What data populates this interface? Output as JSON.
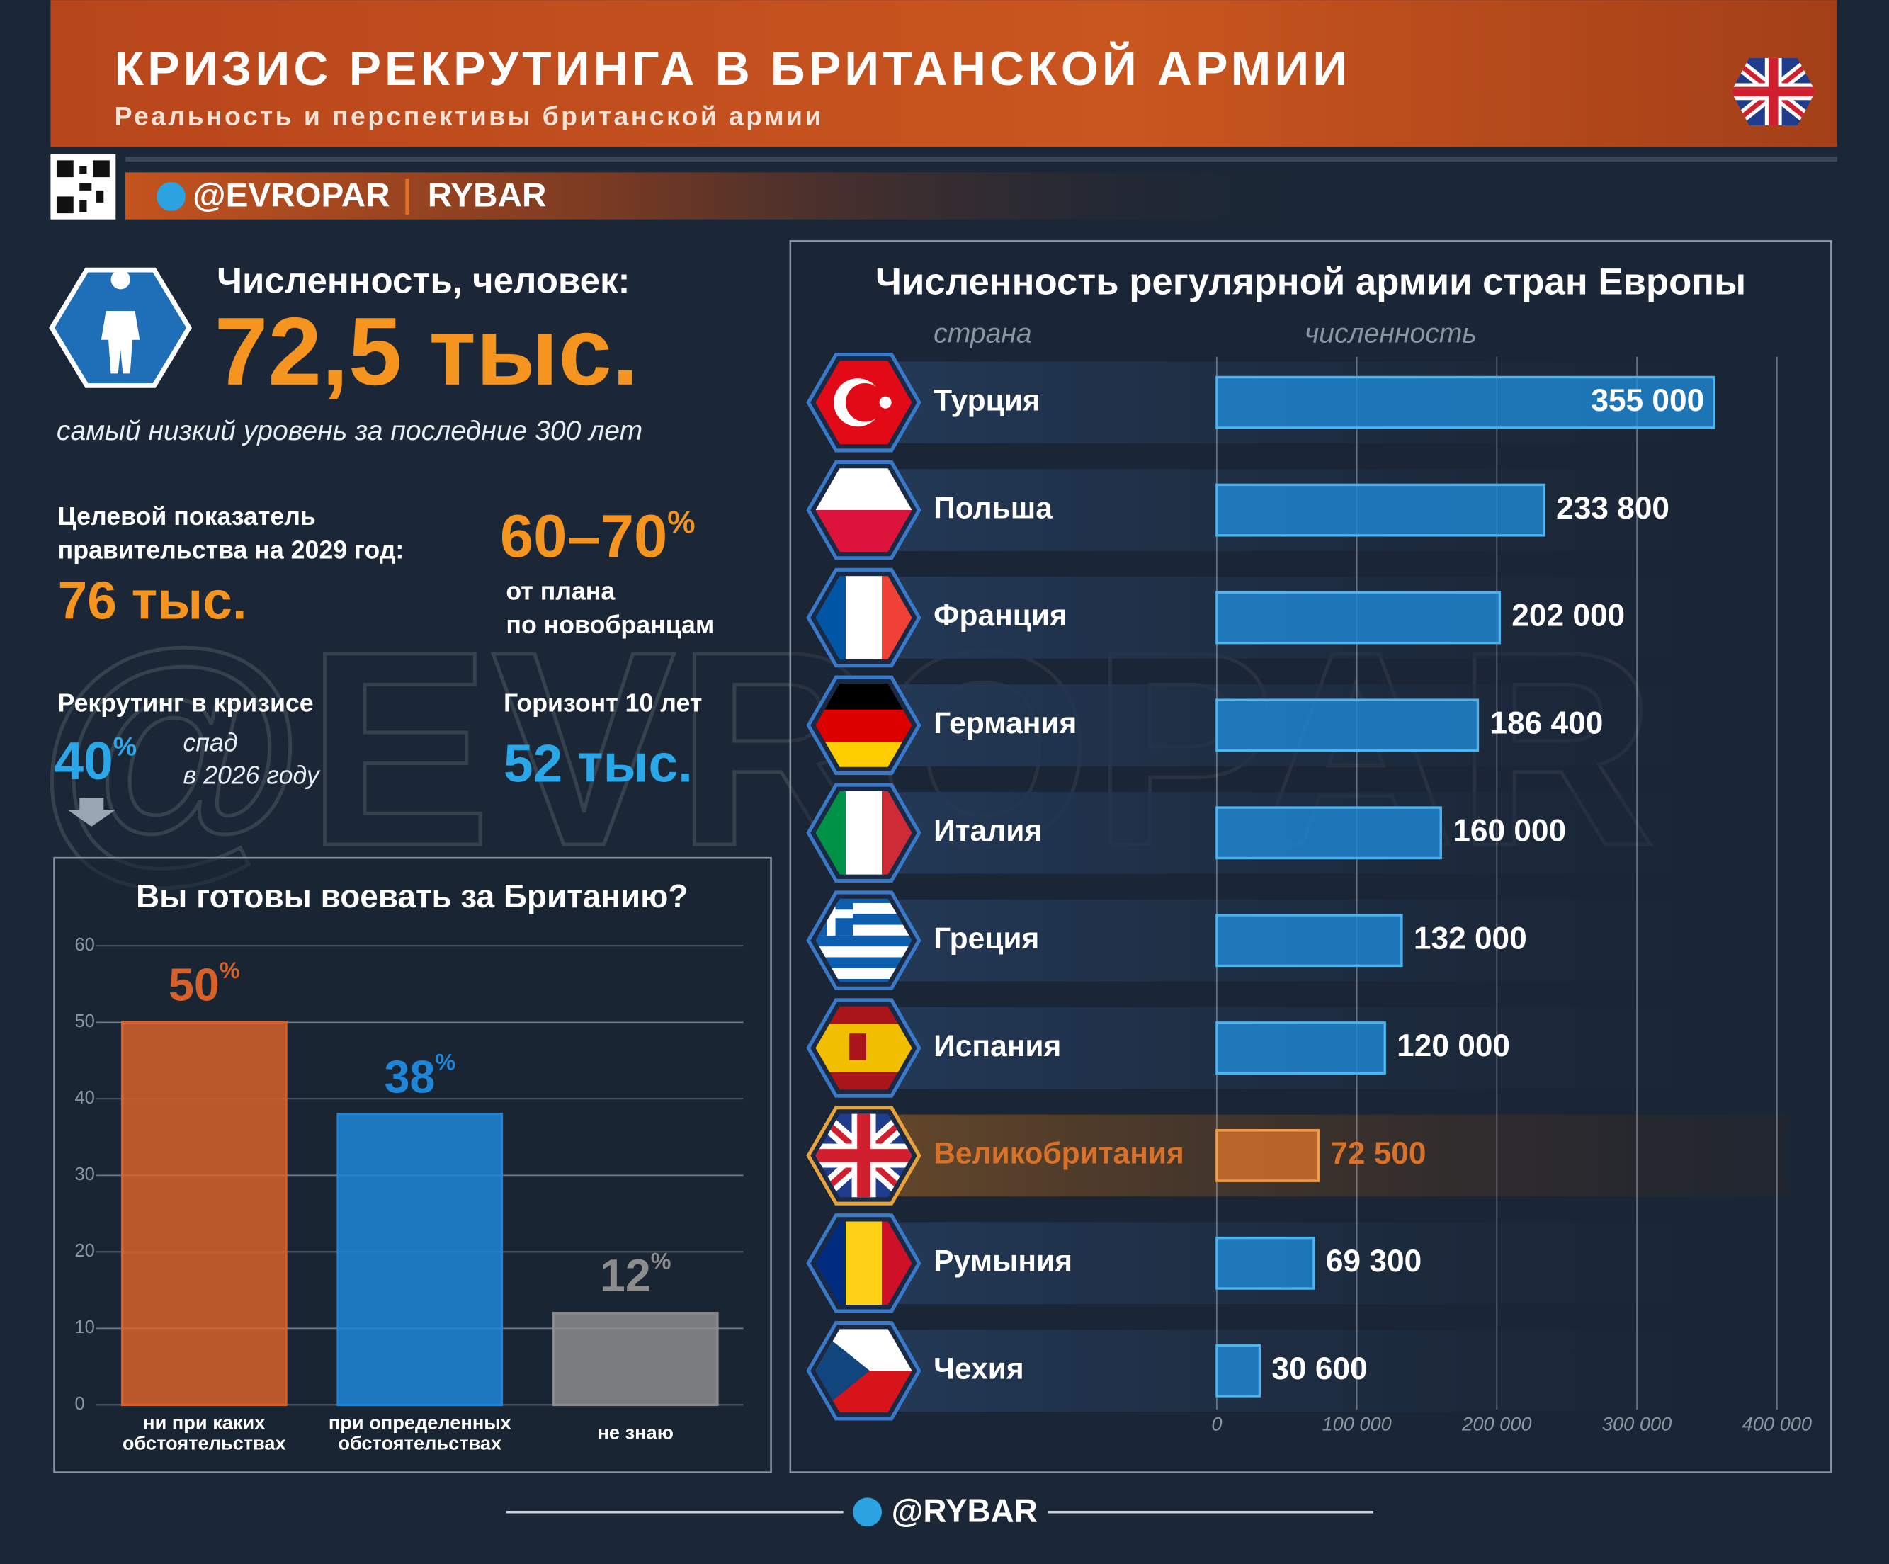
{
  "header": {
    "title": "КРИЗИС РЕКРУТИНГА В БРИТАНСКОЙ АРМИИ",
    "subtitle": "Реальность и перспективы британской армии"
  },
  "brand": {
    "handle": "@EVROPAR",
    "name": "RYBAR"
  },
  "watermark": "@EVROPAR",
  "stats": {
    "strength": {
      "label": "Численность, человек:",
      "value": "72,5 тыс.",
      "note": "самый низкий уровень за последние 300 лет"
    },
    "target": {
      "label_lines": [
        "Целевой показатель",
        "правительства на 2029 год:"
      ],
      "value": "76 тыс."
    },
    "plan": {
      "value": "60–70",
      "unit": "%",
      "note_lines": [
        "от плана",
        "по новобранцам"
      ]
    },
    "crisis": {
      "label": "Рекрутинг в кризисе",
      "value": "40",
      "unit": "%",
      "note_lines": [
        "спад",
        "в 2026 году"
      ]
    },
    "horizon": {
      "label": "Горизонт 10 лет",
      "value": "52 тыс."
    }
  },
  "chart_data": [
    {
      "type": "bar",
      "title": "Вы готовы воевать за Британию?",
      "categories": [
        "ни при каких обстоятельствах",
        "при определенных обстоятельствах",
        "не знаю"
      ],
      "values": [
        50,
        38,
        12
      ],
      "value_labels": [
        "50%",
        "38%",
        "12%"
      ],
      "colors": [
        "#d8612a",
        "#1e86d8",
        "#8c8c8c"
      ],
      "ylim": [
        0,
        60
      ],
      "yticks": [
        0,
        10,
        20,
        30,
        40,
        50,
        60
      ],
      "grid": true
    },
    {
      "type": "hbar",
      "title": "Численность регулярной армии стран Европы",
      "y_label": "страна",
      "x_label": "численность",
      "categories": [
        "Турция",
        "Польша",
        "Франция",
        "Германия",
        "Италия",
        "Греция",
        "Испания",
        "Великобритания",
        "Румыния",
        "Чехия"
      ],
      "values": [
        355000,
        233800,
        202000,
        186400,
        160000,
        132000,
        120000,
        72500,
        69300,
        30600
      ],
      "value_labels": [
        "355 000",
        "233 800",
        "202 000",
        "186 400",
        "160 000",
        "132 000",
        "120 000",
        "72 500",
        "69 300",
        "30 600"
      ],
      "colors": [
        "#1e8ad6",
        "#1e8ad6",
        "#1e8ad6",
        "#1e8ad6",
        "#1e8ad6",
        "#1e8ad6",
        "#1e8ad6",
        "#d8722a",
        "#1e8ad6",
        "#1e8ad6"
      ],
      "xlim": [
        0,
        400000
      ],
      "xticks": [
        0,
        {
          "value": 100000,
          "label": "100 000"
        },
        {
          "value": 200000,
          "label": "200 000"
        },
        {
          "value": 300000,
          "label": "300 000"
        },
        {
          "value": 400000,
          "label": "400 000"
        }
      ],
      "grid": true
    }
  ],
  "footer": "@RYBAR"
}
